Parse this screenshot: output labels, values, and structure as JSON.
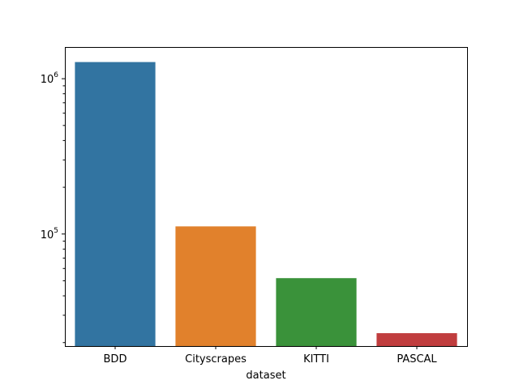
{
  "chart_data": {
    "type": "bar",
    "categories": [
      "BDD",
      "Cityscrapes",
      "KITTI",
      "PASCAL"
    ],
    "values": [
      1280000,
      112000,
      52000,
      23000
    ],
    "colors": [
      "#3274a1",
      "#e1812c",
      "#3a923a",
      "#c03d3e"
    ],
    "xlabel": "dataset",
    "ylabel": "",
    "yscale": "log",
    "ylim": [
      19000,
      1600000
    ],
    "major_ticks": [
      {
        "value": 100000,
        "base": "10",
        "exp": "5"
      },
      {
        "value": 1000000,
        "base": "10",
        "exp": "6"
      }
    ],
    "grid": false
  }
}
